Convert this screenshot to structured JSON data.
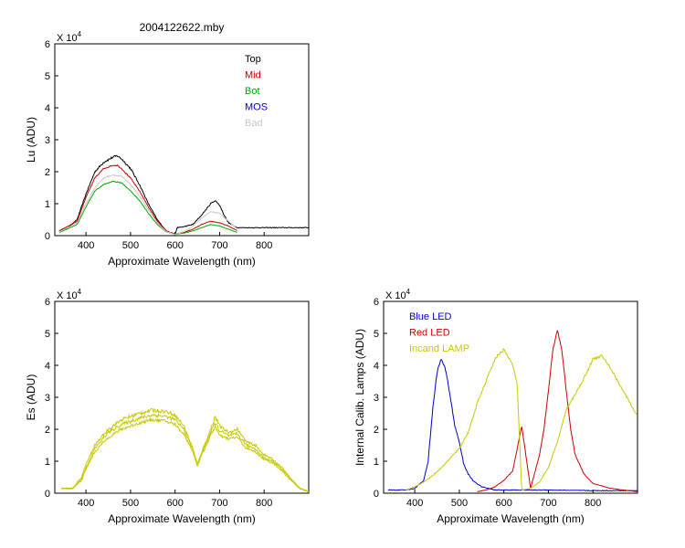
{
  "figure": {
    "title": "2004122622.mby"
  },
  "chart_data": [
    {
      "id": "lu",
      "type": "line",
      "title": "2004122622.mby",
      "xlabel": "Approximate Wavelength (nm)",
      "ylabel": "Lu (ADU)",
      "y_exponent_label": "X 10",
      "y_exponent": "4",
      "xlim": [
        330,
        900
      ],
      "ylim": [
        0,
        60000
      ],
      "xticks": [
        400,
        500,
        600,
        700,
        800
      ],
      "yticks": [
        0,
        10000,
        20000,
        30000,
        40000,
        50000,
        60000
      ],
      "ytick_labels": [
        "0",
        "1",
        "2",
        "3",
        "4",
        "5",
        "6"
      ],
      "legend_position": "top-right",
      "series": [
        {
          "name": "Top",
          "color": "#000000",
          "noise": 600,
          "x": [
            340,
            360,
            380,
            400,
            420,
            440,
            460,
            470,
            480,
            500,
            520,
            540,
            560,
            580,
            600,
            605,
            620,
            640,
            660,
            680,
            690,
            700,
            710,
            720,
            740,
            760,
            800,
            850,
            900
          ],
          "y": [
            1500,
            2500,
            5000,
            13000,
            20000,
            23000,
            24500,
            25000,
            24000,
            21000,
            16000,
            10000,
            5000,
            1500,
            500,
            2500,
            2800,
            3500,
            6500,
            10000,
            11000,
            9500,
            6500,
            4000,
            2500,
            2500,
            2500,
            2500,
            2500
          ]
        },
        {
          "name": "Mid",
          "color": "#cc0000",
          "noise": 400,
          "x": [
            340,
            380,
            400,
            420,
            440,
            460,
            470,
            480,
            500,
            520,
            540,
            560,
            580,
            600,
            620,
            640,
            660,
            680,
            700,
            720,
            740
          ],
          "y": [
            1500,
            4500,
            12000,
            18000,
            21000,
            22000,
            22000,
            21000,
            18000,
            14000,
            9000,
            4500,
            1500,
            500,
            1000,
            2000,
            3500,
            4500,
            4000,
            3000,
            1500
          ]
        },
        {
          "name": "Bot",
          "color": "#00aa00",
          "noise": 300,
          "x": [
            340,
            380,
            400,
            420,
            440,
            460,
            480,
            500,
            520,
            540,
            560,
            580,
            600,
            620,
            640,
            660,
            680,
            700,
            720,
            740
          ],
          "y": [
            1000,
            3500,
            9000,
            14000,
            16000,
            17000,
            16500,
            14000,
            11000,
            7000,
            3500,
            1200,
            400,
            800,
            1500,
            2500,
            3500,
            3000,
            2000,
            1000
          ]
        },
        {
          "name": "MOS",
          "color": "#0000cc",
          "noise": 0,
          "x": [],
          "y": []
        },
        {
          "name": "Bad",
          "color": "#c8c8c8",
          "noise": 400,
          "x": [
            340,
            380,
            400,
            420,
            440,
            460,
            480,
            500,
            520,
            540,
            560,
            580,
            600,
            620,
            640,
            660,
            680,
            700,
            720,
            740
          ],
          "y": [
            1200,
            4000,
            10000,
            15000,
            18000,
            19000,
            18500,
            16000,
            12500,
            8000,
            4000,
            1200,
            400,
            1200,
            3000,
            5500,
            7500,
            7000,
            4500,
            2000
          ]
        }
      ]
    },
    {
      "id": "es",
      "type": "line",
      "title": "",
      "xlabel": "Approximate Wavelength (nm)",
      "ylabel": "Es  (ADU)",
      "y_exponent_label": "X 10",
      "y_exponent": "4",
      "xlim": [
        330,
        900
      ],
      "ylim": [
        0,
        60000
      ],
      "xticks": [
        400,
        500,
        600,
        700,
        800
      ],
      "yticks": [
        0,
        10000,
        20000,
        30000,
        40000,
        50000,
        60000
      ],
      "ytick_labels": [
        "0",
        "1",
        "2",
        "3",
        "4",
        "5",
        "6"
      ],
      "series": [
        {
          "name": "",
          "color": "#c8c800",
          "noise": 1000,
          "x": [
            345,
            370,
            390,
            400,
            420,
            450,
            480,
            500,
            520,
            550,
            580,
            600,
            620,
            640,
            650,
            660,
            680,
            690,
            700,
            720,
            740,
            760,
            780,
            800,
            820,
            840,
            860,
            880,
            900
          ],
          "y": [
            1500,
            1500,
            5000,
            9000,
            15000,
            20000,
            23000,
            24000,
            25000,
            26000,
            25500,
            24500,
            21000,
            14000,
            9000,
            13000,
            20000,
            24000,
            21000,
            19000,
            20000,
            16000,
            15000,
            12000,
            10500,
            8000,
            4500,
            1500,
            500
          ]
        },
        {
          "name": "",
          "color": "#c8c800",
          "noise": 1000,
          "x": [
            345,
            370,
            390,
            400,
            420,
            450,
            480,
            500,
            520,
            550,
            580,
            600,
            620,
            640,
            650,
            660,
            680,
            690,
            700,
            720,
            740,
            760,
            780,
            800,
            820,
            840,
            860,
            880,
            900
          ],
          "y": [
            1500,
            1500,
            4500,
            8000,
            14000,
            19000,
            21500,
            22500,
            23500,
            24500,
            24000,
            23000,
            20000,
            13500,
            9000,
            12500,
            19000,
            22000,
            19500,
            18000,
            18500,
            15000,
            14000,
            11000,
            10000,
            7500,
            4500,
            1500,
            500
          ]
        },
        {
          "name": "",
          "color": "#c8c800",
          "noise": 1000,
          "x": [
            345,
            370,
            390,
            400,
            420,
            450,
            480,
            500,
            520,
            550,
            580,
            600,
            620,
            640,
            650,
            660,
            680,
            690,
            700,
            720,
            740,
            760,
            780,
            800,
            820,
            840,
            860,
            880,
            900
          ],
          "y": [
            1500,
            1500,
            4000,
            7500,
            13000,
            17500,
            20000,
            21000,
            22000,
            23000,
            22500,
            21500,
            18500,
            13000,
            8500,
            12000,
            18000,
            21000,
            18000,
            17000,
            17500,
            14000,
            13000,
            10500,
            9500,
            7000,
            4000,
            1500,
            500
          ]
        }
      ]
    },
    {
      "id": "lamps",
      "type": "line",
      "title": "",
      "xlabel": "Approximate Wavelength (nm)",
      "ylabel": "Internal Calib. Lamps (ADU)",
      "y_exponent_label": "X 10",
      "y_exponent": "4",
      "xlim": [
        330,
        900
      ],
      "ylim": [
        0,
        60000
      ],
      "xticks": [
        400,
        500,
        600,
        700,
        800
      ],
      "yticks": [
        0,
        10000,
        20000,
        30000,
        40000,
        50000,
        60000
      ],
      "ytick_labels": [
        "0",
        "1",
        "2",
        "3",
        "4",
        "5",
        "6"
      ],
      "legend_position": "top-left",
      "series": [
        {
          "name": "Blue LED",
          "color": "#0000cc",
          "noise": 600,
          "x": [
            340,
            380,
            400,
            420,
            430,
            440,
            450,
            460,
            470,
            480,
            490,
            500,
            510,
            520,
            530,
            550,
            580,
            600,
            640,
            700,
            800,
            900
          ],
          "y": [
            1000,
            1000,
            1500,
            4000,
            10000,
            26000,
            38000,
            42000,
            38000,
            30000,
            21000,
            16000,
            9000,
            6000,
            4000,
            2000,
            1000,
            1000,
            1000,
            1000,
            800,
            800
          ]
        },
        {
          "name": "Red LED",
          "color": "#cc0000",
          "noise": 300,
          "x": [
            540,
            560,
            580,
            600,
            620,
            640,
            660,
            680,
            690,
            700,
            710,
            720,
            730,
            740,
            750,
            760,
            780,
            800,
            840,
            880,
            900
          ],
          "y": [
            500,
            1000,
            2000,
            4000,
            7000,
            21000,
            1500,
            12000,
            20000,
            32000,
            45000,
            51000,
            45000,
            32000,
            20000,
            12000,
            6000,
            3000,
            1500,
            800,
            500
          ]
        },
        {
          "name": "Incand LAMP",
          "color": "#c8c800",
          "noise": 500,
          "x": [
            380,
            400,
            420,
            440,
            460,
            480,
            500,
            520,
            540,
            560,
            580,
            600,
            620,
            630,
            640,
            660,
            680,
            700,
            720,
            740,
            760,
            780,
            800,
            820,
            840,
            860,
            880,
            900
          ],
          "y": [
            1000,
            2000,
            3500,
            5500,
            8000,
            11000,
            14000,
            19000,
            28000,
            35000,
            42000,
            45000,
            40000,
            34000,
            1000,
            1500,
            3500,
            8000,
            16000,
            26000,
            31000,
            36000,
            42000,
            43000,
            39000,
            34000,
            29000,
            24000
          ]
        }
      ]
    }
  ]
}
